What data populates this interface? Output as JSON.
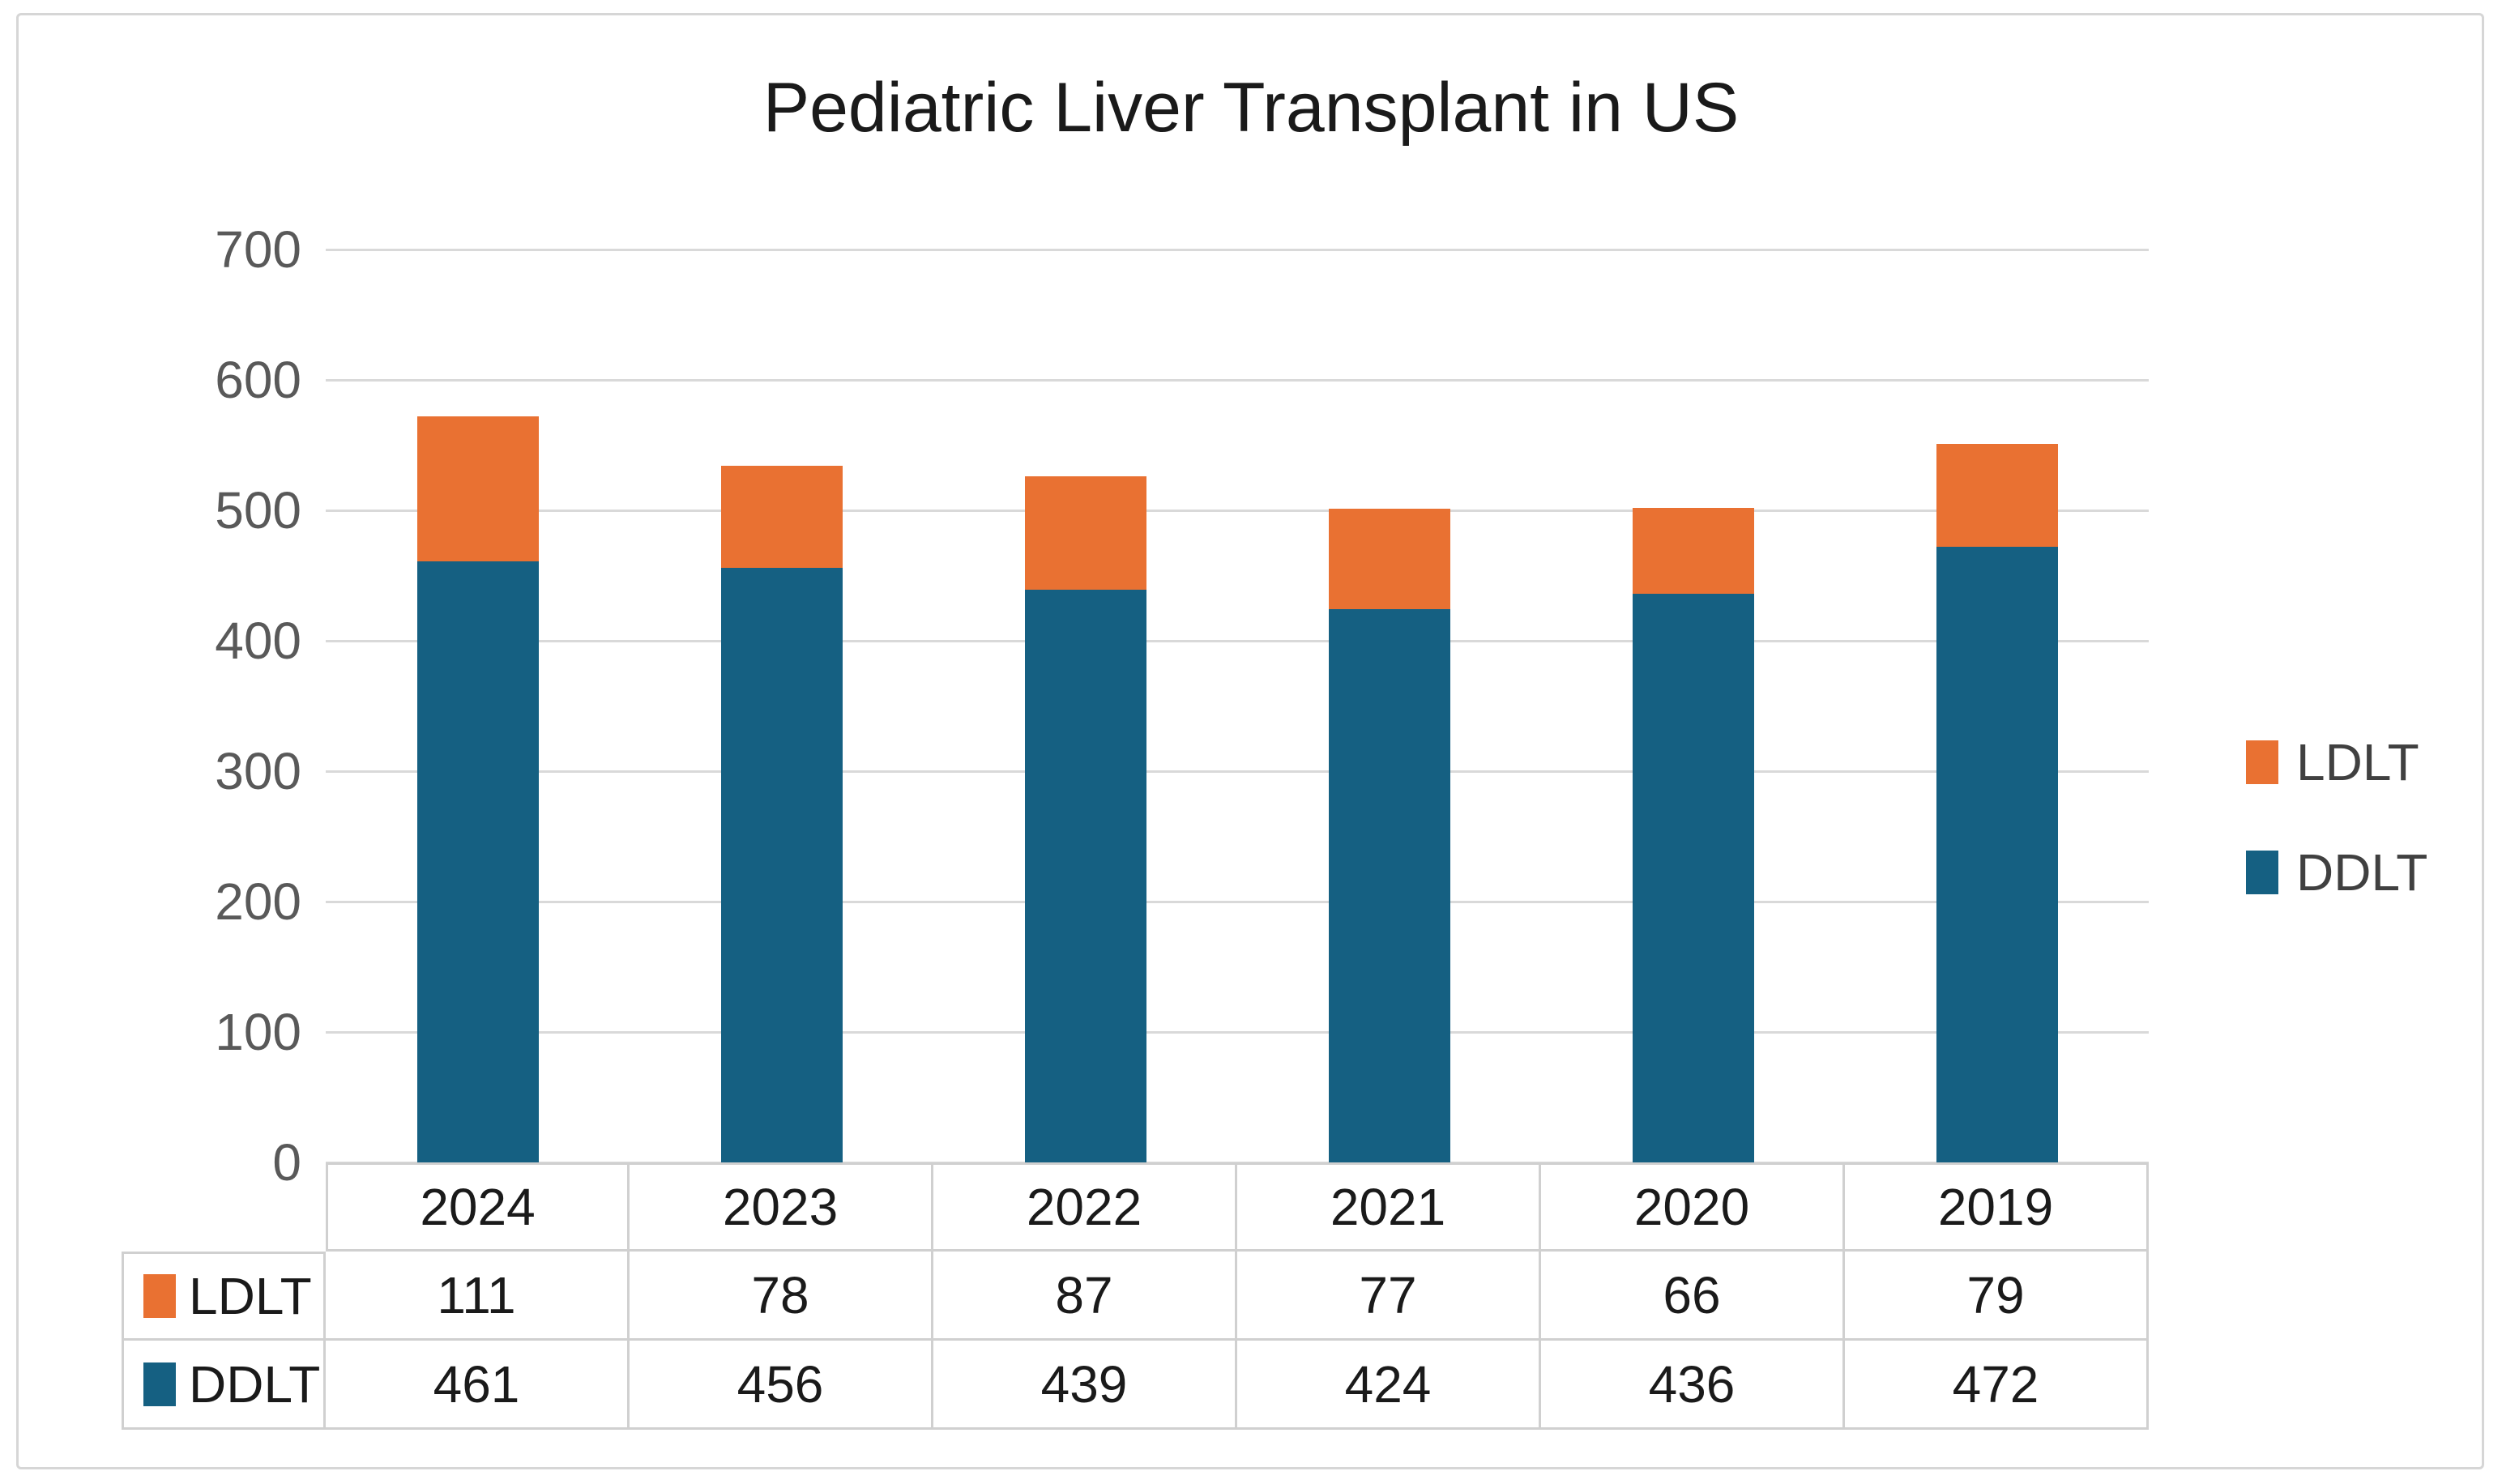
{
  "page": {
    "background": "#FFFFFF",
    "border_color": "#D6D6D6"
  },
  "chart_data": {
    "type": "bar",
    "stacked": true,
    "title": "Pediatric Liver Transplant in US",
    "categories": [
      "2024",
      "2023",
      "2022",
      "2021",
      "2020",
      "2019"
    ],
    "series": [
      {
        "name": "LDLT",
        "color": "#E97132",
        "values": [
          111,
          78,
          87,
          77,
          66,
          79
        ]
      },
      {
        "name": "DDLT",
        "color": "#156082",
        "values": [
          461,
          456,
          439,
          424,
          436,
          472
        ]
      }
    ],
    "stack_bottom_series": "DDLT",
    "xlabel": "",
    "ylabel": "",
    "ylim": [
      0,
      700
    ],
    "y_ticks": [
      700,
      600,
      500,
      400,
      300,
      200,
      100,
      0
    ],
    "grid": true,
    "legend_position": "right",
    "legend_entries": [
      "LDLT",
      "DDLT"
    ],
    "data_table_shown": true
  },
  "style": {
    "title_color": "#1A1A1A",
    "axis_label_color": "#595959",
    "table_text_color": "#1A1A1A",
    "legend_text_color": "#404040",
    "gridline_color": "#D9D9D9",
    "table_border_color": "#D0D0D0"
  }
}
